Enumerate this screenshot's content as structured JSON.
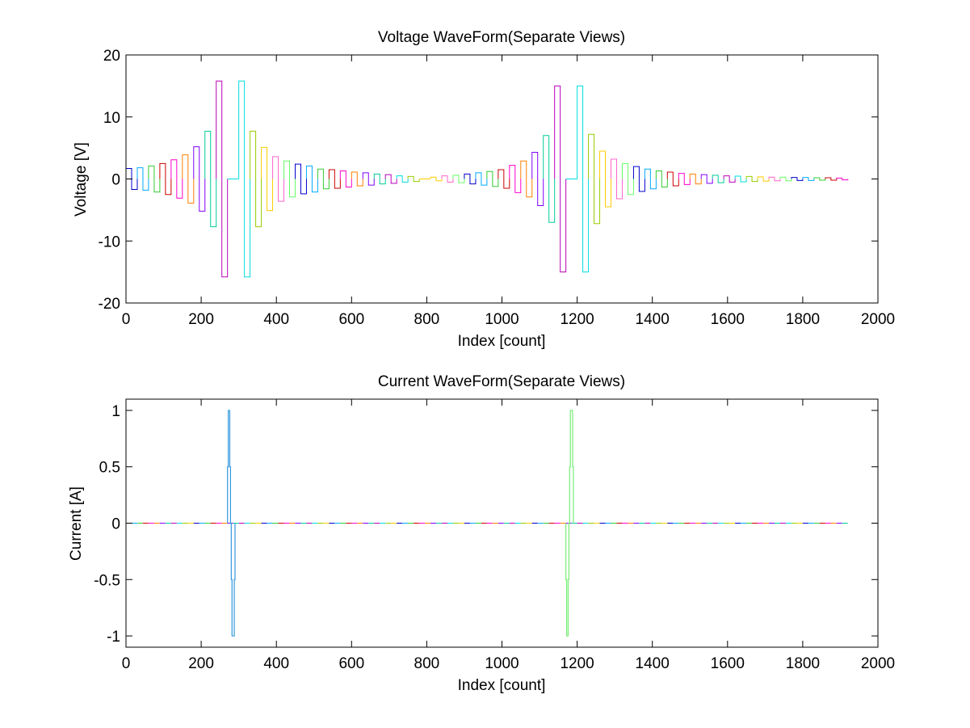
{
  "chart_data": [
    {
      "type": "line",
      "title": "Voltage WaveForm(Separate Views)",
      "xlabel": "Index [count]",
      "ylabel": "Voltage [V]",
      "xlim": [
        0,
        2000
      ],
      "ylim": [
        -20,
        20
      ],
      "xticks": [
        "0",
        "200",
        "400",
        "600",
        "800",
        "1000",
        "1200",
        "1400",
        "1600",
        "1800",
        "2000"
      ],
      "yticks": [
        "20",
        "10",
        "0",
        "-10",
        "-20"
      ],
      "grid": false,
      "series_style": "step",
      "segment_width": 15,
      "colors": [
        "#0000cc",
        "#00aaff",
        "#33cc33",
        "#cc0000",
        "#ff00cc",
        "#ff7f00",
        "#7f00ff",
        "#00cc99",
        "#bb00bb",
        "#00dddd",
        "#99cc00",
        "#ffcc00",
        "#ff66cc",
        "#66ff66"
      ],
      "pulses": [
        {
          "x": 0,
          "a": 1.7
        },
        {
          "x": 30,
          "a": 1.8
        },
        {
          "x": 60,
          "a": 2.1
        },
        {
          "x": 90,
          "a": 2.5
        },
        {
          "x": 120,
          "a": 3.1
        },
        {
          "x": 150,
          "a": 3.9
        },
        {
          "x": 180,
          "a": 5.2
        },
        {
          "x": 210,
          "a": 7.7
        },
        {
          "x": 240,
          "a": 15.8
        },
        {
          "x": 300,
          "a": 15.8
        },
        {
          "x": 330,
          "a": 7.7
        },
        {
          "x": 360,
          "a": 5.1
        },
        {
          "x": 390,
          "a": 3.6
        },
        {
          "x": 420,
          "a": 2.9
        },
        {
          "x": 450,
          "a": 2.4
        },
        {
          "x": 480,
          "a": 2.1
        },
        {
          "x": 510,
          "a": 1.6
        },
        {
          "x": 540,
          "a": 1.5
        },
        {
          "x": 570,
          "a": 1.3
        },
        {
          "x": 600,
          "a": 1.1
        },
        {
          "x": 630,
          "a": 1.0
        },
        {
          "x": 660,
          "a": 0.8
        },
        {
          "x": 690,
          "a": 0.7
        },
        {
          "x": 720,
          "a": 0.5
        },
        {
          "x": 750,
          "a": 0.4
        },
        {
          "x": 810,
          "a": 0.3
        },
        {
          "x": 840,
          "a": 0.5
        },
        {
          "x": 870,
          "a": 0.6
        },
        {
          "x": 900,
          "a": 0.8
        },
        {
          "x": 930,
          "a": 1.0
        },
        {
          "x": 960,
          "a": 1.2
        },
        {
          "x": 990,
          "a": 1.5
        },
        {
          "x": 1020,
          "a": 2.2
        },
        {
          "x": 1050,
          "a": 2.9
        },
        {
          "x": 1080,
          "a": 4.3
        },
        {
          "x": 1110,
          "a": 7.0
        },
        {
          "x": 1140,
          "a": 15.0
        },
        {
          "x": 1200,
          "a": 15.0
        },
        {
          "x": 1230,
          "a": 7.2
        },
        {
          "x": 1260,
          "a": 4.5
        },
        {
          "x": 1290,
          "a": 3.2
        },
        {
          "x": 1320,
          "a": 2.5
        },
        {
          "x": 1350,
          "a": 2.0
        },
        {
          "x": 1380,
          "a": 1.6
        },
        {
          "x": 1410,
          "a": 1.3
        },
        {
          "x": 1440,
          "a": 1.1
        },
        {
          "x": 1470,
          "a": 0.9
        },
        {
          "x": 1500,
          "a": 0.8
        },
        {
          "x": 1530,
          "a": 0.7
        },
        {
          "x": 1560,
          "a": 0.6
        },
        {
          "x": 1590,
          "a": 0.5
        },
        {
          "x": 1620,
          "a": 0.45
        },
        {
          "x": 1650,
          "a": 0.4
        },
        {
          "x": 1680,
          "a": 0.35
        },
        {
          "x": 1710,
          "a": 0.3
        },
        {
          "x": 1740,
          "a": 0.3
        },
        {
          "x": 1770,
          "a": 0.25
        },
        {
          "x": 1800,
          "a": 0.25
        },
        {
          "x": 1830,
          "a": 0.2
        },
        {
          "x": 1860,
          "a": 0.2
        },
        {
          "x": 1890,
          "a": 0.15
        }
      ],
      "end_x": 1920
    },
    {
      "type": "line",
      "title": "Current WaveForm(Separate Views)",
      "xlabel": "Index [count]",
      "ylabel": "Current [A]",
      "xlim": [
        0,
        2000
      ],
      "ylim": [
        -1.1,
        1.1
      ],
      "xticks": [
        "0",
        "200",
        "400",
        "600",
        "800",
        "1000",
        "1200",
        "1400",
        "1600",
        "1800",
        "2000"
      ],
      "yticks": [
        "1",
        "0.5",
        "0",
        "-0.5",
        "-1"
      ],
      "grid": false,
      "series_style": "step",
      "baseline_segment_width": 15,
      "baseline_colors": [
        "#0000cc",
        "#00aaff",
        "#33cc33",
        "#cc0000",
        "#ff00cc",
        "#ff7f00",
        "#7f00ff",
        "#00cc99",
        "#bb00bb",
        "#00dddd",
        "#99cc00",
        "#ffcc00"
      ],
      "pulses": [
        {
          "x": 270,
          "rise": 1.0,
          "color": "#3399dd"
        },
        {
          "x": 1170,
          "rise": -1.0,
          "color": "#77ee77"
        }
      ],
      "end_x": 1920
    }
  ]
}
